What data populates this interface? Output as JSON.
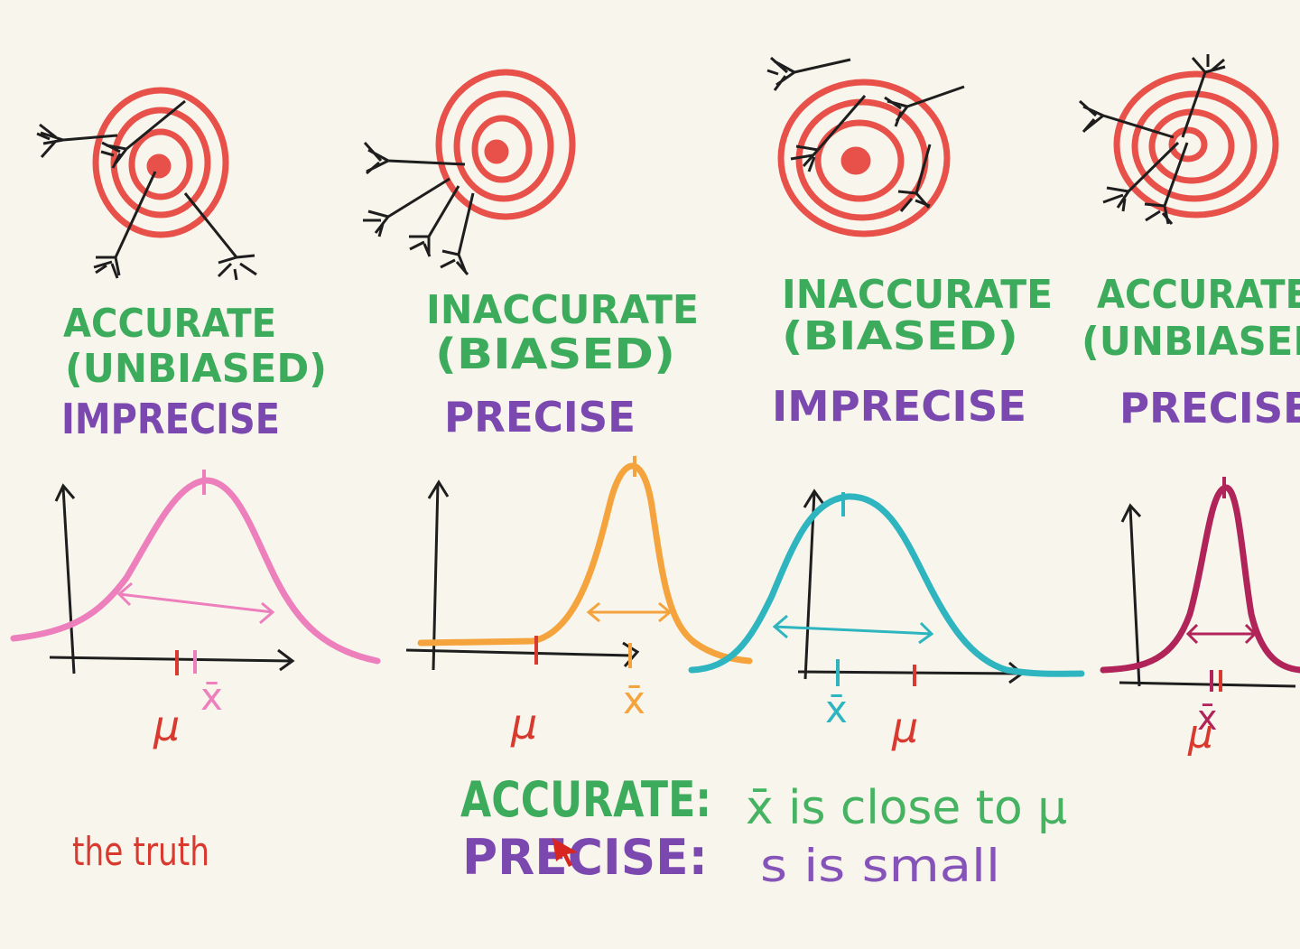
{
  "colors": {
    "background": "#f8f6ec",
    "target_ring": "#e8514a",
    "arrow": "#1e1e1e",
    "accuracy_text": "#3cab5c",
    "precision_text": "#7b48b0",
    "mu_text": "#d93a2f",
    "curve_1": "#ec7fbc",
    "curve_2": "#f5a33c",
    "curve_3": "#2eb5bf",
    "curve_4": "#b0245a"
  },
  "panels": [
    {
      "accuracy": "ACCURATE",
      "bias": "(UNBIASED)",
      "precision": "IMPRECISE",
      "mean_label": "x̄",
      "truth_label": "μ"
    },
    {
      "accuracy": "INACCURATE",
      "bias": "(BIASED)",
      "precision": "PRECISE",
      "mean_label": "x̄",
      "truth_label": "μ"
    },
    {
      "accuracy": "INACCURATE",
      "bias": "(BIASED)",
      "precision": "IMPRECISE",
      "mean_label": "x̄",
      "truth_label": "μ"
    },
    {
      "accuracy": "ACCURATE",
      "bias": "(UNBIASED)",
      "precision": "PRECISE",
      "mean_label": "x̄",
      "truth_label": "μ"
    }
  ],
  "truth_note": "the truth",
  "definitions": {
    "accurate_term": "ACCURATE:",
    "accurate_desc": "x̄ is close to μ",
    "precise_term": "PRECISE:",
    "precise_desc": "s is small"
  }
}
